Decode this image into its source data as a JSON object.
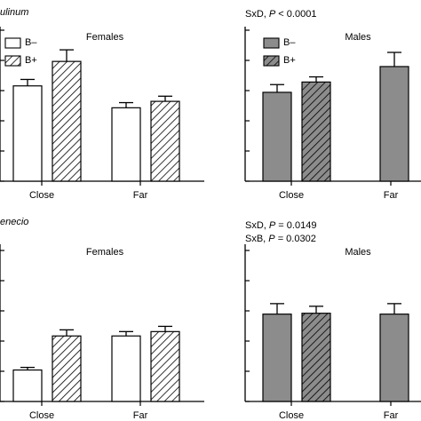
{
  "species_labels": [
    "ulinum",
    "enecio"
  ],
  "stat_prefix_italic": "P",
  "panels": [
    {
      "id": "tl",
      "title": "Females",
      "stats": [],
      "legend": [
        "B–",
        "B+"
      ],
      "legend_fill": "#ffffff",
      "bar_fill": "#ffffff",
      "categories": [
        "Close",
        "Far"
      ],
      "series": [
        {
          "name": "B–",
          "fill": "#ffffff",
          "values": [
            0.74,
            0.57
          ],
          "errors": [
            0.05,
            0.04
          ]
        },
        {
          "name": "B+",
          "fill": "hatch",
          "values": [
            0.93,
            0.62
          ],
          "errors": [
            0.09,
            0.04
          ]
        }
      ],
      "ylim": [
        0,
        1.2
      ]
    },
    {
      "id": "tr",
      "title": "Males",
      "stats": [
        {
          "lead": "SxD, ",
          "p": "P",
          "rest": " < 0.0001"
        }
      ],
      "legend": [
        "B–",
        "B+"
      ],
      "legend_fill": "#8c8c8c",
      "bar_fill": "#8c8c8c",
      "categories": [
        "Close",
        "Far"
      ],
      "series": [
        {
          "name": "B–",
          "fill": "#8c8c8c",
          "values": [
            0.69,
            0.89
          ],
          "errors": [
            0.06,
            0.11
          ]
        },
        {
          "name": "B+",
          "fill": "hatch-gray",
          "values": [
            0.77,
            null
          ],
          "errors": [
            0.04,
            null
          ]
        }
      ],
      "ylim": [
        0,
        1.2
      ]
    },
    {
      "id": "bl",
      "title": "Females",
      "stats": [],
      "legend": [],
      "categories": [
        "Close",
        "Far"
      ],
      "series": [
        {
          "name": "B–",
          "fill": "#ffffff",
          "values": [
            0.36,
            0.75
          ],
          "errors": [
            0.03,
            0.05
          ]
        },
        {
          "name": "B+",
          "fill": "hatch",
          "values": [
            0.75,
            0.8
          ],
          "errors": [
            0.07,
            0.06
          ]
        }
      ],
      "ylim": [
        0,
        1.8
      ]
    },
    {
      "id": "br",
      "title": "Males",
      "stats": [
        {
          "lead": "SxD, ",
          "p": "P",
          "rest": " = 0.0149"
        },
        {
          "lead": "SxB, ",
          "p": "P",
          "rest": " = 0.0302"
        }
      ],
      "legend": [],
      "categories": [
        "Close",
        "Far"
      ],
      "series": [
        {
          "name": "B–",
          "fill": "#8c8c8c",
          "values": [
            1.0,
            1.0
          ],
          "errors": [
            0.12,
            0.12
          ]
        },
        {
          "name": "B+",
          "fill": "hatch-gray",
          "values": [
            1.01,
            null
          ],
          "errors": [
            0.08,
            null
          ]
        }
      ],
      "ylim": [
        0,
        1.8
      ]
    }
  ],
  "chart_data": [
    {
      "type": "bar",
      "title": "Females",
      "categories": [
        "Close",
        "Far"
      ],
      "series": [
        {
          "name": "B–",
          "values": [
            0.74,
            0.57
          ]
        },
        {
          "name": "B+",
          "values": [
            0.93,
            0.62
          ]
        }
      ]
    },
    {
      "type": "bar",
      "title": "Males",
      "categories": [
        "Close",
        "Far"
      ],
      "series": [
        {
          "name": "B–",
          "values": [
            0.69,
            0.89
          ]
        },
        {
          "name": "B+",
          "values": [
            0.77,
            null
          ]
        }
      ]
    },
    {
      "type": "bar",
      "title": "Females",
      "categories": [
        "Close",
        "Far"
      ],
      "series": [
        {
          "name": "B–",
          "values": [
            0.36,
            0.75
          ]
        },
        {
          "name": "B+",
          "values": [
            0.75,
            0.8
          ]
        }
      ]
    },
    {
      "type": "bar",
      "title": "Males",
      "categories": [
        "Close",
        "Far"
      ],
      "series": [
        {
          "name": "B–",
          "values": [
            1.0,
            1.0
          ]
        },
        {
          "name": "B+",
          "values": [
            1.01,
            null
          ]
        }
      ]
    }
  ]
}
